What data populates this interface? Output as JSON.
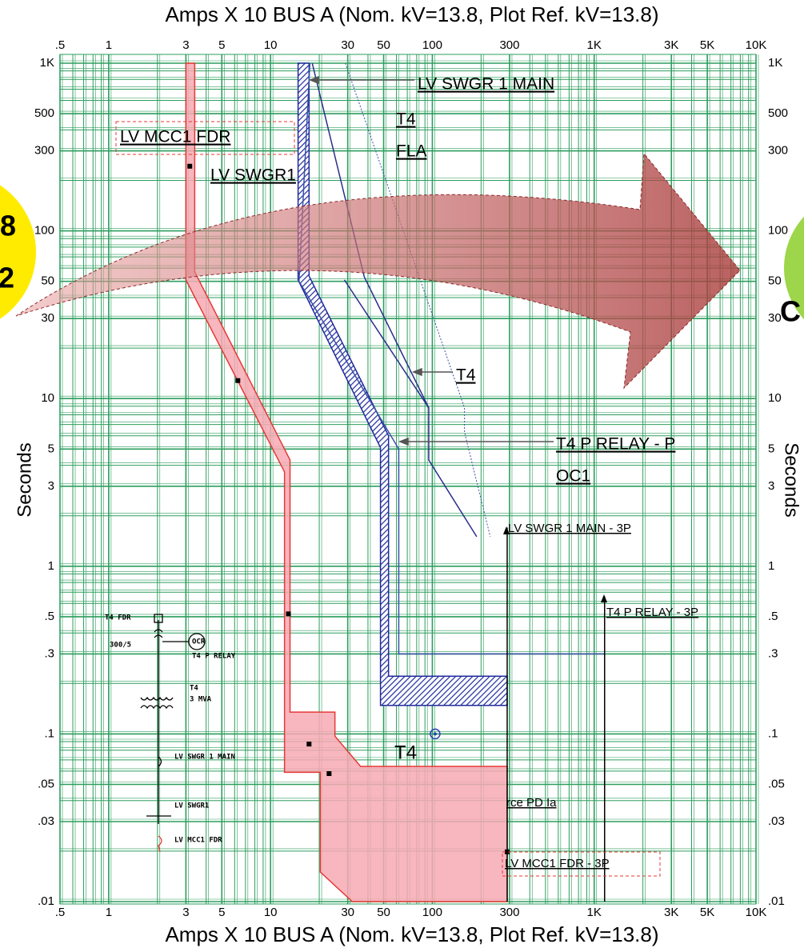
{
  "chart_data": {
    "type": "line",
    "title": "Amps  X  10   BUS A (Nom. kV=13.8, Plot Ref. kV=13.8)",
    "ylabel": "Seconds",
    "xscale": "log",
    "yscale": "log",
    "xlim": [
      0.5,
      10000
    ],
    "ylim": [
      0.01,
      1000
    ],
    "xticks": [
      {
        "value": 0.5,
        "label": ".5"
      },
      1,
      3,
      5,
      10,
      30,
      50,
      100,
      300,
      {
        "value": 1000,
        "label": "1K"
      },
      {
        "value": 3000,
        "label": "3K"
      },
      {
        "value": 5000,
        "label": "5K"
      },
      {
        "value": 10000,
        "label": "10K"
      }
    ],
    "yticks": [
      {
        "value": 1000,
        "label": "1K"
      },
      500,
      300,
      100,
      50,
      30,
      10,
      5,
      3,
      1,
      {
        "value": 0.5,
        "label": ".5"
      },
      {
        "value": 0.3,
        "label": ".3"
      },
      {
        "value": 0.1,
        "label": ".1"
      },
      {
        "value": 0.05,
        "label": ".05"
      },
      {
        "value": 0.03,
        "label": ".03"
      },
      {
        "value": 0.01,
        "label": ".01"
      }
    ],
    "grid": true,
    "grid_color": "#2e9e5e",
    "series": [
      {
        "kind": "band",
        "color": "#e53935",
        "fill": "#f7a9b4",
        "x": [
          3,
          3.4,
          3.4,
          13.2,
          13.2,
          25,
          25,
          36,
          290,
          290,
          32,
          20.3,
          20.3,
          12.2,
          12.2,
          3,
          3
        ],
        "y": [
          1000,
          1000,
          57,
          4.3,
          0.135,
          0.135,
          0.097,
          0.064,
          0.064,
          0.01,
          0.01,
          0.015,
          0.059,
          0.059,
          3.65,
          51,
          1000
        ]
      },
      {
        "kind": "band",
        "color": "#1f2a9c",
        "fill": "hatch",
        "x": [
          15.1,
          17.3,
          17.3,
          53.6,
          53.6,
          290,
          290,
          47.8,
          47.8,
          14.8,
          14.8
        ],
        "y": [
          1000,
          1000,
          53.8,
          6,
          0.221,
          0.221,
          0.148,
          0.148,
          5.1,
          51,
          1000
        ]
      },
      {
        "kind": "line",
        "color": "#3b4fa8",
        "style": "solid",
        "x": [
          17.5,
          15,
          62,
          62,
          1160
        ],
        "y": [
          1000,
          50,
          5,
          0.3,
          0.3
        ]
      },
      {
        "kind": "line",
        "color": "#2a2f8a",
        "style": "solid",
        "x": [
          18.1,
          38,
          95,
          95,
          188
        ],
        "y": [
          1000,
          53,
          8.8,
          4.3,
          1.5
        ]
      },
      {
        "kind": "line",
        "color": "#2a2f8a",
        "style": "solid",
        "x": [
          28.6,
          95
        ],
        "y": [
          51,
          8.8
        ]
      },
      {
        "kind": "line",
        "color": "#3b4fa8",
        "style": "dotted",
        "x": [
          29,
          158,
          158,
          228
        ],
        "y": [
          1000,
          8.8,
          6.3,
          1.5
        ]
      },
      {
        "kind": "line",
        "color": "#000000",
        "style": "solid",
        "x": [
          290,
          290
        ],
        "y": [
          1.7,
          0.01
        ]
      },
      {
        "kind": "line",
        "color": "#000000",
        "style": "solid",
        "x": [
          1160,
          1160
        ],
        "y": [
          0.66,
          0.01
        ]
      },
      {
        "kind": "markers",
        "color": "#000000",
        "x": [
          3.17,
          6.28,
          12.9,
          17.3,
          23,
          290
        ],
        "y": [
          243,
          12.8,
          0.52,
          0.087,
          0.058,
          0.0198
        ]
      },
      {
        "kind": "ring",
        "color": "#2a3fb0",
        "x": [
          104
        ],
        "y": [
          0.1
        ]
      }
    ],
    "annotations": [
      "LV SWGR 1 MAIN",
      "T4",
      "FLA",
      "LV MCC1 FDR",
      "LV SWGR1",
      "T4",
      "T4 P RELAY - P",
      "OC1",
      "LV SWGR 1 MAIN - 3P",
      "T4 P RELAY - 3P",
      "rce PD Ia",
      "LV MCC1 FDR - 3P",
      "T4"
    ]
  },
  "one_line_diagram": {
    "labels": [
      "T4 FDR",
      "300/5",
      "OCR",
      "T4 P RELAY",
      "T4",
      "3 MVA",
      "LV SWGR 1 MAIN",
      "LV SWGR1",
      "LV MCC1 FDR"
    ]
  },
  "overlay": {
    "left_badge": [
      "8",
      "2"
    ],
    "right_badge": [
      "C"
    ]
  }
}
